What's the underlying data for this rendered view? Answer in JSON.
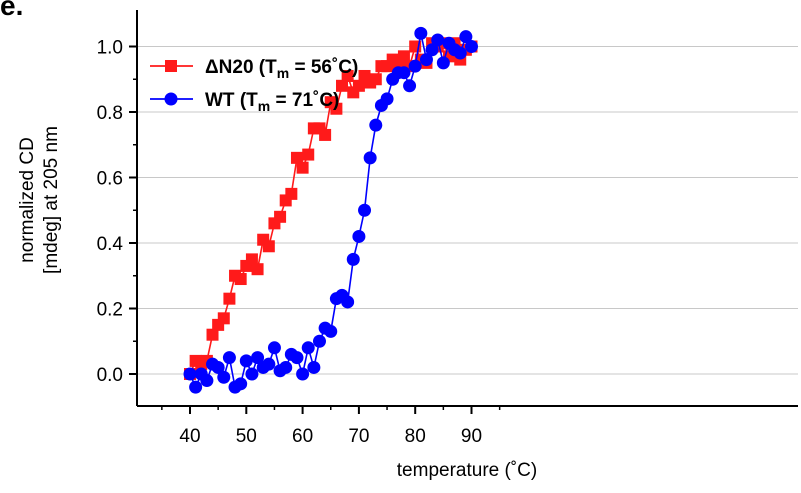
{
  "panel_label": "e.",
  "chart_data": {
    "type": "line",
    "title": "",
    "xlabel": "temperature (˚C)",
    "ylabel_line1": "normalized CD",
    "ylabel_line2": "[mdeg] at 205 nm",
    "xlim": [
      35,
      95
    ],
    "ylim": [
      -0.1,
      1.1
    ],
    "xticks": [
      40,
      50,
      60,
      70,
      80,
      90
    ],
    "yticks": [
      0.0,
      0.2,
      0.4,
      0.6,
      0.8,
      1.0
    ],
    "ytick_labels": [
      "0.0",
      "0.2",
      "0.4",
      "0.6",
      "0.8",
      "1.0"
    ],
    "grid": "horizontal",
    "legend_placement": "top-left",
    "series": [
      {
        "name": "ΔN20",
        "legend_tm_prefix": "(T",
        "legend_tm_sub": "m",
        "legend_tm_value": " = 56˚C)",
        "color": "#ff1a1a",
        "marker": "square",
        "x": [
          40,
          41,
          42,
          43,
          44,
          45,
          46,
          47,
          48,
          49,
          50,
          51,
          52,
          53,
          54,
          55,
          56,
          57,
          58,
          59,
          60,
          61,
          62,
          63,
          64,
          65,
          66,
          67,
          68,
          69,
          70,
          71,
          72,
          73,
          74,
          75,
          76,
          77,
          78,
          79,
          80,
          81,
          82,
          83,
          84,
          85,
          86,
          87,
          88,
          89,
          90
        ],
        "y": [
          0.0,
          0.04,
          0.03,
          0.04,
          0.12,
          0.15,
          0.17,
          0.23,
          0.3,
          0.29,
          0.33,
          0.35,
          0.32,
          0.41,
          0.39,
          0.46,
          0.48,
          0.53,
          0.55,
          0.66,
          0.63,
          0.67,
          0.75,
          0.75,
          0.73,
          0.83,
          0.81,
          0.88,
          0.91,
          0.86,
          0.88,
          0.91,
          0.89,
          0.9,
          0.94,
          0.94,
          0.96,
          0.95,
          0.97,
          0.94,
          1.0,
          0.96,
          0.95,
          1.01,
          1.0,
          1.01,
          0.97,
          1.01,
          0.96,
          0.99,
          1.0
        ]
      },
      {
        "name": "WT",
        "legend_tm_prefix": "(T",
        "legend_tm_sub": "m",
        "legend_tm_value": " = 71˚C)",
        "color": "#0000ff",
        "marker": "circle",
        "x": [
          40,
          41,
          42,
          43,
          44,
          45,
          46,
          47,
          48,
          49,
          50,
          51,
          52,
          53,
          54,
          55,
          56,
          57,
          58,
          59,
          60,
          61,
          62,
          63,
          64,
          65,
          66,
          67,
          68,
          69,
          70,
          71,
          72,
          73,
          74,
          75,
          76,
          77,
          78,
          79,
          80,
          81,
          82,
          83,
          84,
          85,
          86,
          87,
          88,
          89,
          90
        ],
        "y": [
          0.0,
          -0.04,
          0.0,
          -0.02,
          0.03,
          0.02,
          -0.01,
          0.05,
          -0.04,
          -0.03,
          0.04,
          0.0,
          0.05,
          0.02,
          0.03,
          0.08,
          0.01,
          0.02,
          0.06,
          0.05,
          0.0,
          0.08,
          0.02,
          0.1,
          0.14,
          0.13,
          0.23,
          0.24,
          0.22,
          0.35,
          0.42,
          0.5,
          0.66,
          0.76,
          0.82,
          0.84,
          0.9,
          0.92,
          0.92,
          0.88,
          0.94,
          1.04,
          0.96,
          0.99,
          1.02,
          0.95,
          1.01,
          0.99,
          0.98,
          1.03,
          1.0
        ]
      }
    ]
  }
}
